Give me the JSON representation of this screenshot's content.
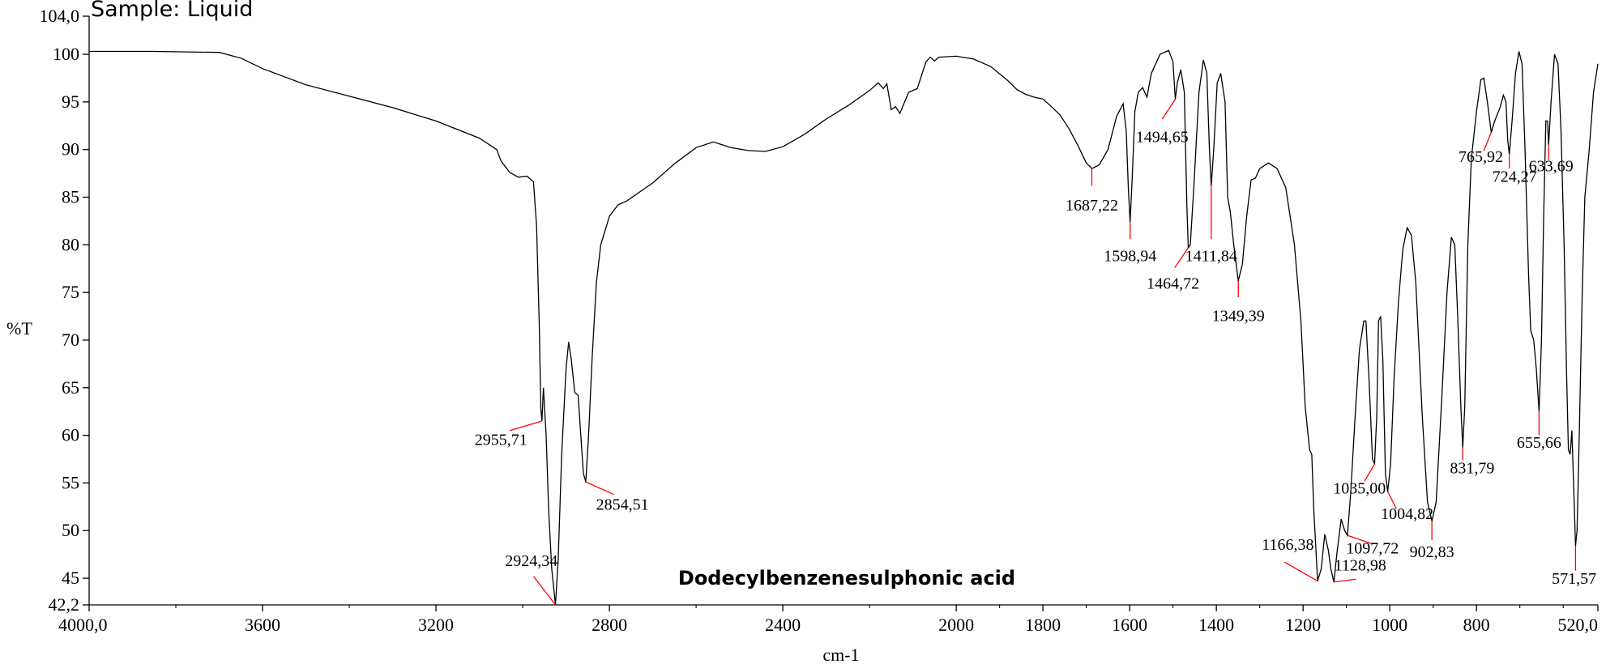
{
  "chart_data": {
    "type": "line",
    "sample_label": "Sample: Liquid",
    "compound_label": "Dodecylbenzenesulphonic acid",
    "xlabel": "cm-1",
    "ylabel": "%T",
    "xlim": [
      4000,
      520
    ],
    "ylim": [
      42.2,
      104
    ],
    "x_reversed": true,
    "grid": false,
    "x_tick_labels": [
      "4000,0",
      "3600",
      "3200",
      "2800",
      "2400",
      "2000",
      "1800",
      "1600",
      "1400",
      "1200",
      "1000",
      "800",
      "520,0"
    ],
    "x_tick_values": [
      4000,
      3600,
      3200,
      2800,
      2400,
      2000,
      1800,
      1600,
      1400,
      1200,
      1000,
      800,
      520
    ],
    "x_minor_ticks": [
      3800,
      3400,
      3000,
      2600,
      2200,
      1900,
      1700,
      1500,
      1300,
      1100,
      900,
      700,
      600
    ],
    "y_tick_labels": [
      "104,0",
      "100",
      "95",
      "90",
      "85",
      "80",
      "75",
      "70",
      "65",
      "60",
      "55",
      "50",
      "45",
      "42,2"
    ],
    "y_tick_values": [
      104,
      100,
      95,
      90,
      85,
      80,
      75,
      70,
      65,
      60,
      55,
      50,
      45,
      42.2
    ],
    "line_color": "#000000",
    "annotation_color": "#ff0000",
    "spectrum": [
      [
        4000,
        100.3
      ],
      [
        3850,
        100.3
      ],
      [
        3700,
        100.2
      ],
      [
        3650,
        99.6
      ],
      [
        3600,
        98.5
      ],
      [
        3500,
        96.8
      ],
      [
        3400,
        95.6
      ],
      [
        3300,
        94.4
      ],
      [
        3200,
        93.0
      ],
      [
        3100,
        91.2
      ],
      [
        3060,
        90.0
      ],
      [
        3050,
        88.8
      ],
      [
        3030,
        87.6
      ],
      [
        3010,
        87.1
      ],
      [
        2990,
        87.2
      ],
      [
        2975,
        86.6
      ],
      [
        2968,
        82
      ],
      [
        2962,
        72
      ],
      [
        2958,
        62.8
      ],
      [
        2955.71,
        61.5
      ],
      [
        2952,
        65.0
      ],
      [
        2946,
        60
      ],
      [
        2940,
        52
      ],
      [
        2933,
        46
      ],
      [
        2924.34,
        42.2
      ],
      [
        2918,
        47
      ],
      [
        2910,
        58
      ],
      [
        2900,
        67
      ],
      [
        2894,
        69.8
      ],
      [
        2888,
        68
      ],
      [
        2880,
        64.5
      ],
      [
        2872,
        64.2
      ],
      [
        2866,
        60
      ],
      [
        2860,
        56
      ],
      [
        2854.51,
        55.1
      ],
      [
        2848,
        60
      ],
      [
        2840,
        68
      ],
      [
        2830,
        76
      ],
      [
        2820,
        80
      ],
      [
        2800,
        83
      ],
      [
        2780,
        84.2
      ],
      [
        2760,
        84.6
      ],
      [
        2700,
        86.5
      ],
      [
        2650,
        88.5
      ],
      [
        2600,
        90.2
      ],
      [
        2560,
        90.8
      ],
      [
        2520,
        90.2
      ],
      [
        2480,
        89.9
      ],
      [
        2440,
        89.8
      ],
      [
        2400,
        90.3
      ],
      [
        2350,
        91.6
      ],
      [
        2300,
        93.2
      ],
      [
        2250,
        94.6
      ],
      [
        2200,
        96.2
      ],
      [
        2180,
        97.0
      ],
      [
        2168,
        96.4
      ],
      [
        2160,
        96.9
      ],
      [
        2150,
        94.2
      ],
      [
        2140,
        94.5
      ],
      [
        2130,
        93.8
      ],
      [
        2110,
        96.0
      ],
      [
        2090,
        96.4
      ],
      [
        2070,
        99.2
      ],
      [
        2060,
        99.7
      ],
      [
        2050,
        99.3
      ],
      [
        2040,
        99.7
      ],
      [
        2000,
        99.8
      ],
      [
        1960,
        99.5
      ],
      [
        1920,
        98.7
      ],
      [
        1880,
        97.2
      ],
      [
        1860,
        96.3
      ],
      [
        1840,
        95.8
      ],
      [
        1820,
        95.5
      ],
      [
        1800,
        95.3
      ],
      [
        1780,
        94.5
      ],
      [
        1760,
        93.6
      ],
      [
        1740,
        92.2
      ],
      [
        1720,
        90.5
      ],
      [
        1700,
        88.6
      ],
      [
        1687.22,
        88.0
      ],
      [
        1670,
        88.4
      ],
      [
        1650,
        90
      ],
      [
        1630,
        93.5
      ],
      [
        1615,
        94.8
      ],
      [
        1608,
        92
      ],
      [
        1603,
        86
      ],
      [
        1598.94,
        82.4
      ],
      [
        1594,
        87
      ],
      [
        1588,
        94
      ],
      [
        1580,
        96
      ],
      [
        1570,
        96.5
      ],
      [
        1560,
        95.5
      ],
      [
        1550,
        98
      ],
      [
        1530,
        100
      ],
      [
        1510,
        100.4
      ],
      [
        1500,
        99.2
      ],
      [
        1494.65,
        95.3
      ],
      [
        1490,
        97
      ],
      [
        1482,
        98.4
      ],
      [
        1474,
        96
      ],
      [
        1468,
        84
      ],
      [
        1464.72,
        79.7
      ],
      [
        1460,
        80
      ],
      [
        1452,
        86
      ],
      [
        1440,
        96
      ],
      [
        1430,
        99.4
      ],
      [
        1422,
        98
      ],
      [
        1416,
        90
      ],
      [
        1411.84,
        86.2
      ],
      [
        1406,
        90
      ],
      [
        1398,
        97
      ],
      [
        1390,
        98
      ],
      [
        1380,
        95
      ],
      [
        1374,
        85
      ],
      [
        1368,
        83.5
      ],
      [
        1360,
        80
      ],
      [
        1349.39,
        76.2
      ],
      [
        1340,
        78
      ],
      [
        1330,
        83
      ],
      [
        1320,
        86.8
      ],
      [
        1310,
        87
      ],
      [
        1300,
        88
      ],
      [
        1280,
        88.6
      ],
      [
        1260,
        88
      ],
      [
        1240,
        86
      ],
      [
        1220,
        80
      ],
      [
        1205,
        72
      ],
      [
        1195,
        63
      ],
      [
        1185,
        58.5
      ],
      [
        1180,
        58
      ],
      [
        1175,
        52
      ],
      [
        1166.38,
        44.7
      ],
      [
        1158,
        46
      ],
      [
        1150,
        49.6
      ],
      [
        1142,
        48
      ],
      [
        1136,
        46
      ],
      [
        1128.98,
        44.6
      ],
      [
        1122,
        47.6
      ],
      [
        1112,
        51.2
      ],
      [
        1104,
        50
      ],
      [
        1097.72,
        49.5
      ],
      [
        1090,
        54
      ],
      [
        1080,
        62
      ],
      [
        1070,
        69
      ],
      [
        1060,
        72
      ],
      [
        1055,
        72
      ],
      [
        1048,
        66
      ],
      [
        1040,
        57.5
      ],
      [
        1035.0,
        57
      ],
      [
        1030,
        62
      ],
      [
        1026,
        72
      ],
      [
        1021,
        72.5
      ],
      [
        1016,
        68
      ],
      [
        1010,
        56
      ],
      [
        1004.82,
        54.1
      ],
      [
        998,
        57
      ],
      [
        990,
        66
      ],
      [
        980,
        74
      ],
      [
        970,
        79.5
      ],
      [
        960,
        81.8
      ],
      [
        950,
        81
      ],
      [
        940,
        76
      ],
      [
        925,
        62
      ],
      [
        913,
        53
      ],
      [
        902.83,
        51
      ],
      [
        893,
        53
      ],
      [
        880,
        64
      ],
      [
        868,
        75
      ],
      [
        858,
        80.8
      ],
      [
        850,
        80
      ],
      [
        843,
        72
      ],
      [
        836,
        63
      ],
      [
        831.79,
        58.7
      ],
      [
        827,
        63
      ],
      [
        820,
        80
      ],
      [
        812,
        89
      ],
      [
        800,
        94
      ],
      [
        790,
        97.3
      ],
      [
        783,
        97.5
      ],
      [
        775,
        95
      ],
      [
        765.92,
        91.8
      ],
      [
        758,
        93
      ],
      [
        745,
        94.5
      ],
      [
        738,
        95.7
      ],
      [
        732,
        95
      ],
      [
        728,
        91
      ],
      [
        724.27,
        89.5
      ],
      [
        718,
        93
      ],
      [
        710,
        98
      ],
      [
        702,
        100.3
      ],
      [
        695,
        99
      ],
      [
        688,
        90
      ],
      [
        680,
        77
      ],
      [
        675,
        71
      ],
      [
        668,
        70
      ],
      [
        662,
        67
      ],
      [
        655.66,
        62.5
      ],
      [
        650,
        70
      ],
      [
        645,
        83
      ],
      [
        640,
        93
      ],
      [
        636,
        93
      ],
      [
        633.69,
        90.5
      ],
      [
        628,
        95
      ],
      [
        620,
        100
      ],
      [
        612,
        99
      ],
      [
        605,
        92
      ],
      [
        598,
        80
      ],
      [
        592,
        66
      ],
      [
        588,
        58.5
      ],
      [
        584,
        58
      ],
      [
        580,
        60.5
      ],
      [
        576,
        55
      ],
      [
        571.57,
        48.4
      ],
      [
        568,
        50
      ],
      [
        563,
        60
      ],
      [
        556,
        75
      ],
      [
        550,
        85
      ],
      [
        540,
        90
      ],
      [
        530,
        96
      ],
      [
        520,
        99
      ]
    ],
    "peaks": [
      {
        "label": "2955,71",
        "x": 2955.71,
        "y": 61.5,
        "lx": 3030,
        "ly": 60.5,
        "tx": 3050,
        "ty": 59
      },
      {
        "label": "2924,34",
        "x": 2924.34,
        "y": 42.2,
        "lx": 2975,
        "ly": 45.2,
        "tx": 2980,
        "ty": 46.3
      },
      {
        "label": "2854,51",
        "x": 2854.51,
        "y": 55.1,
        "lx": 2790,
        "ly": 53.8,
        "tx": 2770,
        "ty": 52.2
      },
      {
        "label": "1687,22",
        "x": 1687.22,
        "y": 88.0,
        "lx": 1687.22,
        "ly": 86.2,
        "tx": 1687.22,
        "ty": 83.6
      },
      {
        "label": "1598,94",
        "x": 1598.94,
        "y": 82.4,
        "lx": 1598.94,
        "ly": 80.6,
        "tx": 1598.94,
        "ty": 78.3
      },
      {
        "label": "1494,65",
        "x": 1494.65,
        "y": 95.3,
        "lx": 1525,
        "ly": 93.2,
        "tx": 1525,
        "ty": 90.8
      },
      {
        "label": "1464,72",
        "x": 1464.72,
        "y": 79.7,
        "lx": 1496,
        "ly": 77.6,
        "tx": 1500,
        "ty": 75.4
      },
      {
        "label": "1411,84",
        "x": 1411.84,
        "y": 86.2,
        "lx": 1411.84,
        "ly": 80.6,
        "tx": 1411.84,
        "ty": 78.3
      },
      {
        "label": "1349,39",
        "x": 1349.39,
        "y": 76.2,
        "lx": 1349.39,
        "ly": 74.5,
        "tx": 1349.39,
        "ty": 72.0
      },
      {
        "label": "1166,38",
        "x": 1166.38,
        "y": 44.7,
        "lx": 1243,
        "ly": 46.7,
        "tx": 1235,
        "ty": 48.0
      },
      {
        "label": "1128,98",
        "x": 1128.98,
        "y": 44.6,
        "lx": 1078,
        "ly": 44.9,
        "tx": 1068,
        "ty": 45.8
      },
      {
        "label": "1097,72",
        "x": 1097.72,
        "y": 49.5,
        "lx": 1040,
        "ly": 48.6,
        "tx": 1040,
        "ty": 47.6
      },
      {
        "label": "1035,00",
        "x": 1035.0,
        "y": 57.0,
        "lx": 1058,
        "ly": 55.2,
        "tx": 1070,
        "ty": 53.9
      },
      {
        "label": "1004,82",
        "x": 1004.82,
        "y": 54.1,
        "lx": 985,
        "ly": 52.3,
        "tx": 960,
        "ty": 51.2
      },
      {
        "label": "902,83",
        "x": 902.83,
        "y": 51.0,
        "lx": 902.83,
        "ly": 49.0,
        "tx": 902.83,
        "ty": 47.2
      },
      {
        "label": "831,79",
        "x": 831.79,
        "y": 58.7,
        "lx": 831.79,
        "ly": 57.4,
        "tx": 810,
        "ty": 56.0
      },
      {
        "label": "765,92",
        "x": 765.92,
        "y": 91.8,
        "lx": 783,
        "ly": 89.9,
        "tx": 790,
        "ty": 88.7
      },
      {
        "label": "724,27",
        "x": 724.27,
        "y": 89.5,
        "lx": 724.27,
        "ly": 88.0,
        "tx": 712,
        "ty": 86.6
      },
      {
        "label": "633,69",
        "x": 633.69,
        "y": 90.5,
        "lx": 633.69,
        "ly": 88.9,
        "tx": 628,
        "ty": 87.7
      },
      {
        "label": "655,66",
        "x": 655.66,
        "y": 62.5,
        "lx": 655.66,
        "ly": 60.0,
        "tx": 655.66,
        "ty": 58.7
      },
      {
        "label": "571,57",
        "x": 571.57,
        "y": 48.4,
        "lx": 571.57,
        "ly": 45.8,
        "tx": 575,
        "ty": 44.4
      }
    ]
  }
}
